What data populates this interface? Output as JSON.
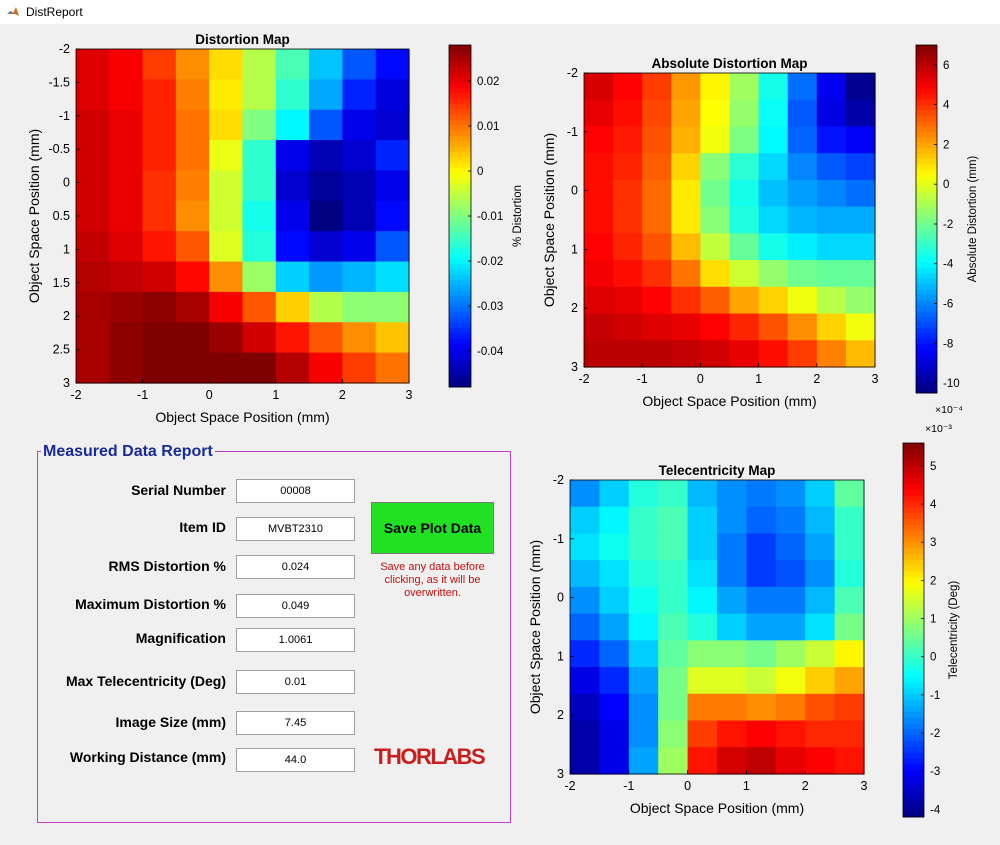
{
  "window": {
    "title": "DistReport"
  },
  "plots": [
    {
      "title": "Distortion Map",
      "xlabel": "Object Space Position (mm)",
      "ylabel": "Object Space Position (mm)",
      "xticks": [
        "-2",
        "-1",
        "0",
        "1",
        "2",
        "3"
      ],
      "yticks": [
        "-2",
        "-1.5",
        "-1",
        "-0.5",
        "0",
        "0.5",
        "1",
        "1.5",
        "2",
        "2.5",
        "3"
      ],
      "colorbar": {
        "label": "% Distortion",
        "exponent": "",
        "clim": [
          -0.048,
          0.028
        ],
        "ticks": [
          "0.02",
          "0.01",
          "0",
          "-0.01",
          "-0.02",
          "-0.03",
          "-0.04"
        ],
        "tick_values": [
          0.02,
          0.01,
          0,
          -0.01,
          -0.02,
          -0.03,
          -0.04
        ]
      },
      "matrix": [
        [
          0.021,
          0.019,
          0.014,
          0.008,
          0.002,
          -0.006,
          -0.014,
          -0.024,
          -0.032,
          -0.038
        ],
        [
          0.021,
          0.019,
          0.016,
          0.009,
          0.001,
          -0.006,
          -0.016,
          -0.026,
          -0.036,
          -0.041
        ],
        [
          0.022,
          0.02,
          0.016,
          0.01,
          0.002,
          -0.01,
          -0.02,
          -0.032,
          -0.04,
          -0.042
        ],
        [
          0.022,
          0.02,
          0.016,
          0.01,
          -0.002,
          -0.016,
          -0.04,
          -0.044,
          -0.042,
          -0.036
        ],
        [
          0.022,
          0.02,
          0.015,
          0.009,
          -0.004,
          -0.016,
          -0.042,
          -0.046,
          -0.044,
          -0.04
        ],
        [
          0.022,
          0.02,
          0.015,
          0.008,
          -0.004,
          -0.018,
          -0.04,
          -0.048,
          -0.044,
          -0.038
        ],
        [
          0.023,
          0.021,
          0.017,
          0.012,
          -0.003,
          -0.017,
          -0.038,
          -0.042,
          -0.04,
          -0.032
        ],
        [
          0.024,
          0.023,
          0.022,
          0.018,
          0.008,
          -0.008,
          -0.023,
          -0.027,
          -0.025,
          -0.022
        ],
        [
          0.025,
          0.026,
          0.027,
          0.025,
          0.019,
          0.012,
          0.003,
          -0.006,
          -0.009,
          -0.009
        ],
        [
          0.025,
          0.027,
          0.029,
          0.029,
          0.026,
          0.022,
          0.017,
          0.012,
          0.008,
          0.004
        ],
        [
          0.025,
          0.027,
          0.029,
          0.031,
          0.031,
          0.028,
          0.024,
          0.019,
          0.014,
          0.01
        ]
      ]
    },
    {
      "title": "Absolute Distortion Map",
      "xlabel": "Object Space Position (mm)",
      "ylabel": "Object Space Position (mm)",
      "xticks": [
        "-2",
        "-1",
        "0",
        "1",
        "2",
        "3"
      ],
      "yticks": [
        "-2",
        "-1",
        "0",
        "1",
        "2",
        "3"
      ],
      "colorbar": {
        "label": "Absolute Distortion (mm)",
        "exponent": "×10⁻⁴",
        "clim": [
          -10.5,
          7
        ],
        "ticks": [
          "6",
          "4",
          "2",
          "0",
          "-2",
          "-4",
          "-6",
          "-8",
          "-10"
        ],
        "tick_values": [
          6,
          4,
          2,
          0,
          -2,
          -4,
          -6,
          -8,
          -10
        ]
      },
      "matrix": [
        [
          5.5,
          4.8,
          3.8,
          2.2,
          0.6,
          -1.2,
          -3.6,
          -6.4,
          -8.6,
          -10.2
        ],
        [
          5.2,
          4.6,
          3.6,
          2.0,
          0.4,
          -1.4,
          -3.8,
          -6.8,
          -8.8,
          -9.8
        ],
        [
          4.8,
          4.4,
          3.4,
          1.8,
          0.2,
          -1.8,
          -4.0,
          -6.6,
          -8.0,
          -8.4
        ],
        [
          4.6,
          4.2,
          3.2,
          1.2,
          -1.6,
          -3.2,
          -4.6,
          -6.0,
          -6.8,
          -7.2
        ],
        [
          4.6,
          4.0,
          3.0,
          0.8,
          -2.0,
          -3.6,
          -5.0,
          -5.6,
          -6.0,
          -6.4
        ],
        [
          4.6,
          4.0,
          3.0,
          0.8,
          -1.6,
          -3.4,
          -4.6,
          -5.2,
          -5.4,
          -5.4
        ],
        [
          4.8,
          4.2,
          3.4,
          1.6,
          -0.6,
          -2.2,
          -3.6,
          -4.2,
          -4.6,
          -4.6
        ],
        [
          5.0,
          4.6,
          4.0,
          2.8,
          1.0,
          -0.4,
          -1.4,
          -2.0,
          -2.2,
          -2.2
        ],
        [
          5.4,
          5.2,
          4.8,
          4.0,
          3.2,
          2.0,
          1.2,
          0.2,
          -0.8,
          -1.4
        ],
        [
          5.8,
          5.6,
          5.4,
          5.2,
          4.8,
          4.2,
          3.4,
          2.4,
          1.2,
          0.2
        ],
        [
          6.0,
          6.0,
          6.0,
          5.8,
          5.6,
          5.2,
          4.6,
          3.8,
          2.6,
          1.6
        ]
      ]
    },
    {
      "title": "Telecentricity Map",
      "xlabel": "Object Space Position (mm)",
      "ylabel": "Object Space Position (mm)",
      "xticks": [
        "-2",
        "-1",
        "0",
        "1",
        "2",
        "3"
      ],
      "yticks": [
        "-2",
        "-1",
        "0",
        "1",
        "2",
        "3"
      ],
      "colorbar": {
        "label": "Telecentricity (Deg)",
        "exponent": "×10⁻³",
        "clim": [
          -4.2,
          5.6
        ],
        "ticks": [
          "5",
          "4",
          "3",
          "2",
          "1",
          "0",
          "-1",
          "-2",
          "-3",
          "-4"
        ],
        "tick_values": [
          5,
          4,
          3,
          2,
          1,
          0,
          -1,
          -2,
          -3,
          -4
        ]
      },
      "matrix": [
        [
          -1.6,
          -1.0,
          -0.2,
          0.0,
          -1.2,
          -1.6,
          -1.8,
          -1.6,
          -1.0,
          0.4
        ],
        [
          -1.0,
          -0.6,
          0.0,
          0.2,
          -1.0,
          -1.6,
          -2.0,
          -1.8,
          -1.2,
          0.0
        ],
        [
          -0.8,
          -0.4,
          0.0,
          0.2,
          -1.0,
          -1.8,
          -2.4,
          -2.0,
          -1.4,
          0.0
        ],
        [
          -1.2,
          -0.8,
          -0.2,
          0.0,
          -0.8,
          -1.8,
          -2.4,
          -2.2,
          -1.6,
          -0.2
        ],
        [
          -1.6,
          -1.0,
          -0.4,
          0.0,
          -0.6,
          -1.4,
          -1.8,
          -1.8,
          -1.2,
          0.2
        ],
        [
          -2.0,
          -1.4,
          -0.6,
          0.2,
          -0.2,
          -1.0,
          -1.4,
          -1.4,
          -0.8,
          0.6
        ],
        [
          -2.6,
          -2.0,
          -1.0,
          0.4,
          0.8,
          0.8,
          0.6,
          1.0,
          1.4,
          2.0
        ],
        [
          -3.2,
          -2.6,
          -1.4,
          0.6,
          1.6,
          1.6,
          1.4,
          1.8,
          2.4,
          2.8
        ],
        [
          -3.6,
          -3.0,
          -1.6,
          0.6,
          3.2,
          3.2,
          3.0,
          3.2,
          3.6,
          3.8
        ],
        [
          -3.8,
          -3.2,
          -1.6,
          0.8,
          3.8,
          4.2,
          4.4,
          4.2,
          4.0,
          4.0
        ],
        [
          -3.8,
          -3.2,
          -1.4,
          1.0,
          4.2,
          4.8,
          5.0,
          4.6,
          4.4,
          4.2
        ]
      ]
    }
  ],
  "report": {
    "title": "Measured Data Report",
    "fields": [
      {
        "label": "Serial Number",
        "value": "00008"
      },
      {
        "label": "Item ID",
        "value": "MVBT2310"
      },
      {
        "label": "RMS Distortion %",
        "value": "0.024"
      },
      {
        "label": "Maximum Distortion %",
        "value": "0.049"
      },
      {
        "label": "Magnification",
        "value": "1.0061"
      },
      {
        "label": "Max Telecentricity (Deg)",
        "value": "0.01"
      },
      {
        "label": "Image Size (mm)",
        "value": "7.45"
      },
      {
        "label": "Working Distance (mm)",
        "value": "44.0"
      }
    ],
    "save_button": "Save Plot Data",
    "warning": "Save any data before clicking, as it will be overwritten.",
    "logo": "THORLABS"
  }
}
